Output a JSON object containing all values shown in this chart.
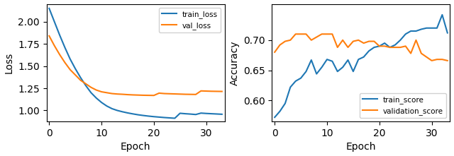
{
  "loss_train": [
    2.15,
    2.0,
    1.85,
    1.71,
    1.58,
    1.47,
    1.37,
    1.28,
    1.2,
    1.14,
    1.09,
    1.05,
    1.02,
    1.0,
    0.985,
    0.972,
    0.961,
    0.951,
    0.943,
    0.936,
    0.93,
    0.925,
    0.92,
    0.916,
    0.912,
    0.968,
    0.963,
    0.959,
    0.954,
    0.97,
    0.966,
    0.963,
    0.96,
    0.957
  ],
  "loss_val": [
    1.84,
    1.73,
    1.63,
    1.54,
    1.46,
    1.4,
    1.34,
    1.3,
    1.26,
    1.23,
    1.21,
    1.2,
    1.19,
    1.185,
    1.182,
    1.178,
    1.175,
    1.173,
    1.171,
    1.17,
    1.169,
    1.195,
    1.19,
    1.188,
    1.186,
    1.184,
    1.182,
    1.181,
    1.18,
    1.22,
    1.218,
    1.216,
    1.215,
    1.214
  ],
  "acc_train": [
    0.572,
    0.582,
    0.595,
    0.622,
    0.632,
    0.637,
    0.648,
    0.667,
    0.644,
    0.655,
    0.668,
    0.665,
    0.648,
    0.655,
    0.667,
    0.648,
    0.668,
    0.672,
    0.682,
    0.688,
    0.69,
    0.695,
    0.688,
    0.692,
    0.7,
    0.71,
    0.715,
    0.715,
    0.718,
    0.72,
    0.72,
    0.72,
    0.742,
    0.712
  ],
  "acc_val": [
    0.68,
    0.692,
    0.698,
    0.7,
    0.71,
    0.71,
    0.71,
    0.7,
    0.705,
    0.71,
    0.71,
    0.71,
    0.688,
    0.7,
    0.688,
    0.698,
    0.7,
    0.695,
    0.698,
    0.698,
    0.69,
    0.69,
    0.688,
    0.688,
    0.688,
    0.69,
    0.678,
    0.7,
    0.678,
    0.672,
    0.666,
    0.668,
    0.668,
    0.666
  ],
  "epochs": 34,
  "color_blue": "#1f77b4",
  "color_orange": "#ff7f0e",
  "loss_ylabel": "Loss",
  "acc_ylabel": "Accuracy",
  "xlabel": "Epoch",
  "legend1": [
    "train_loss",
    "val_loss"
  ],
  "legend2": [
    "train_score",
    "validation_score"
  ],
  "loss_ylim": [
    0.875,
    2.2
  ],
  "acc_ylim": [
    0.565,
    0.76
  ],
  "loss_yticks": [
    1.0,
    1.25,
    1.5,
    1.75,
    2.0
  ],
  "acc_yticks": [
    0.6,
    0.65,
    0.7
  ]
}
